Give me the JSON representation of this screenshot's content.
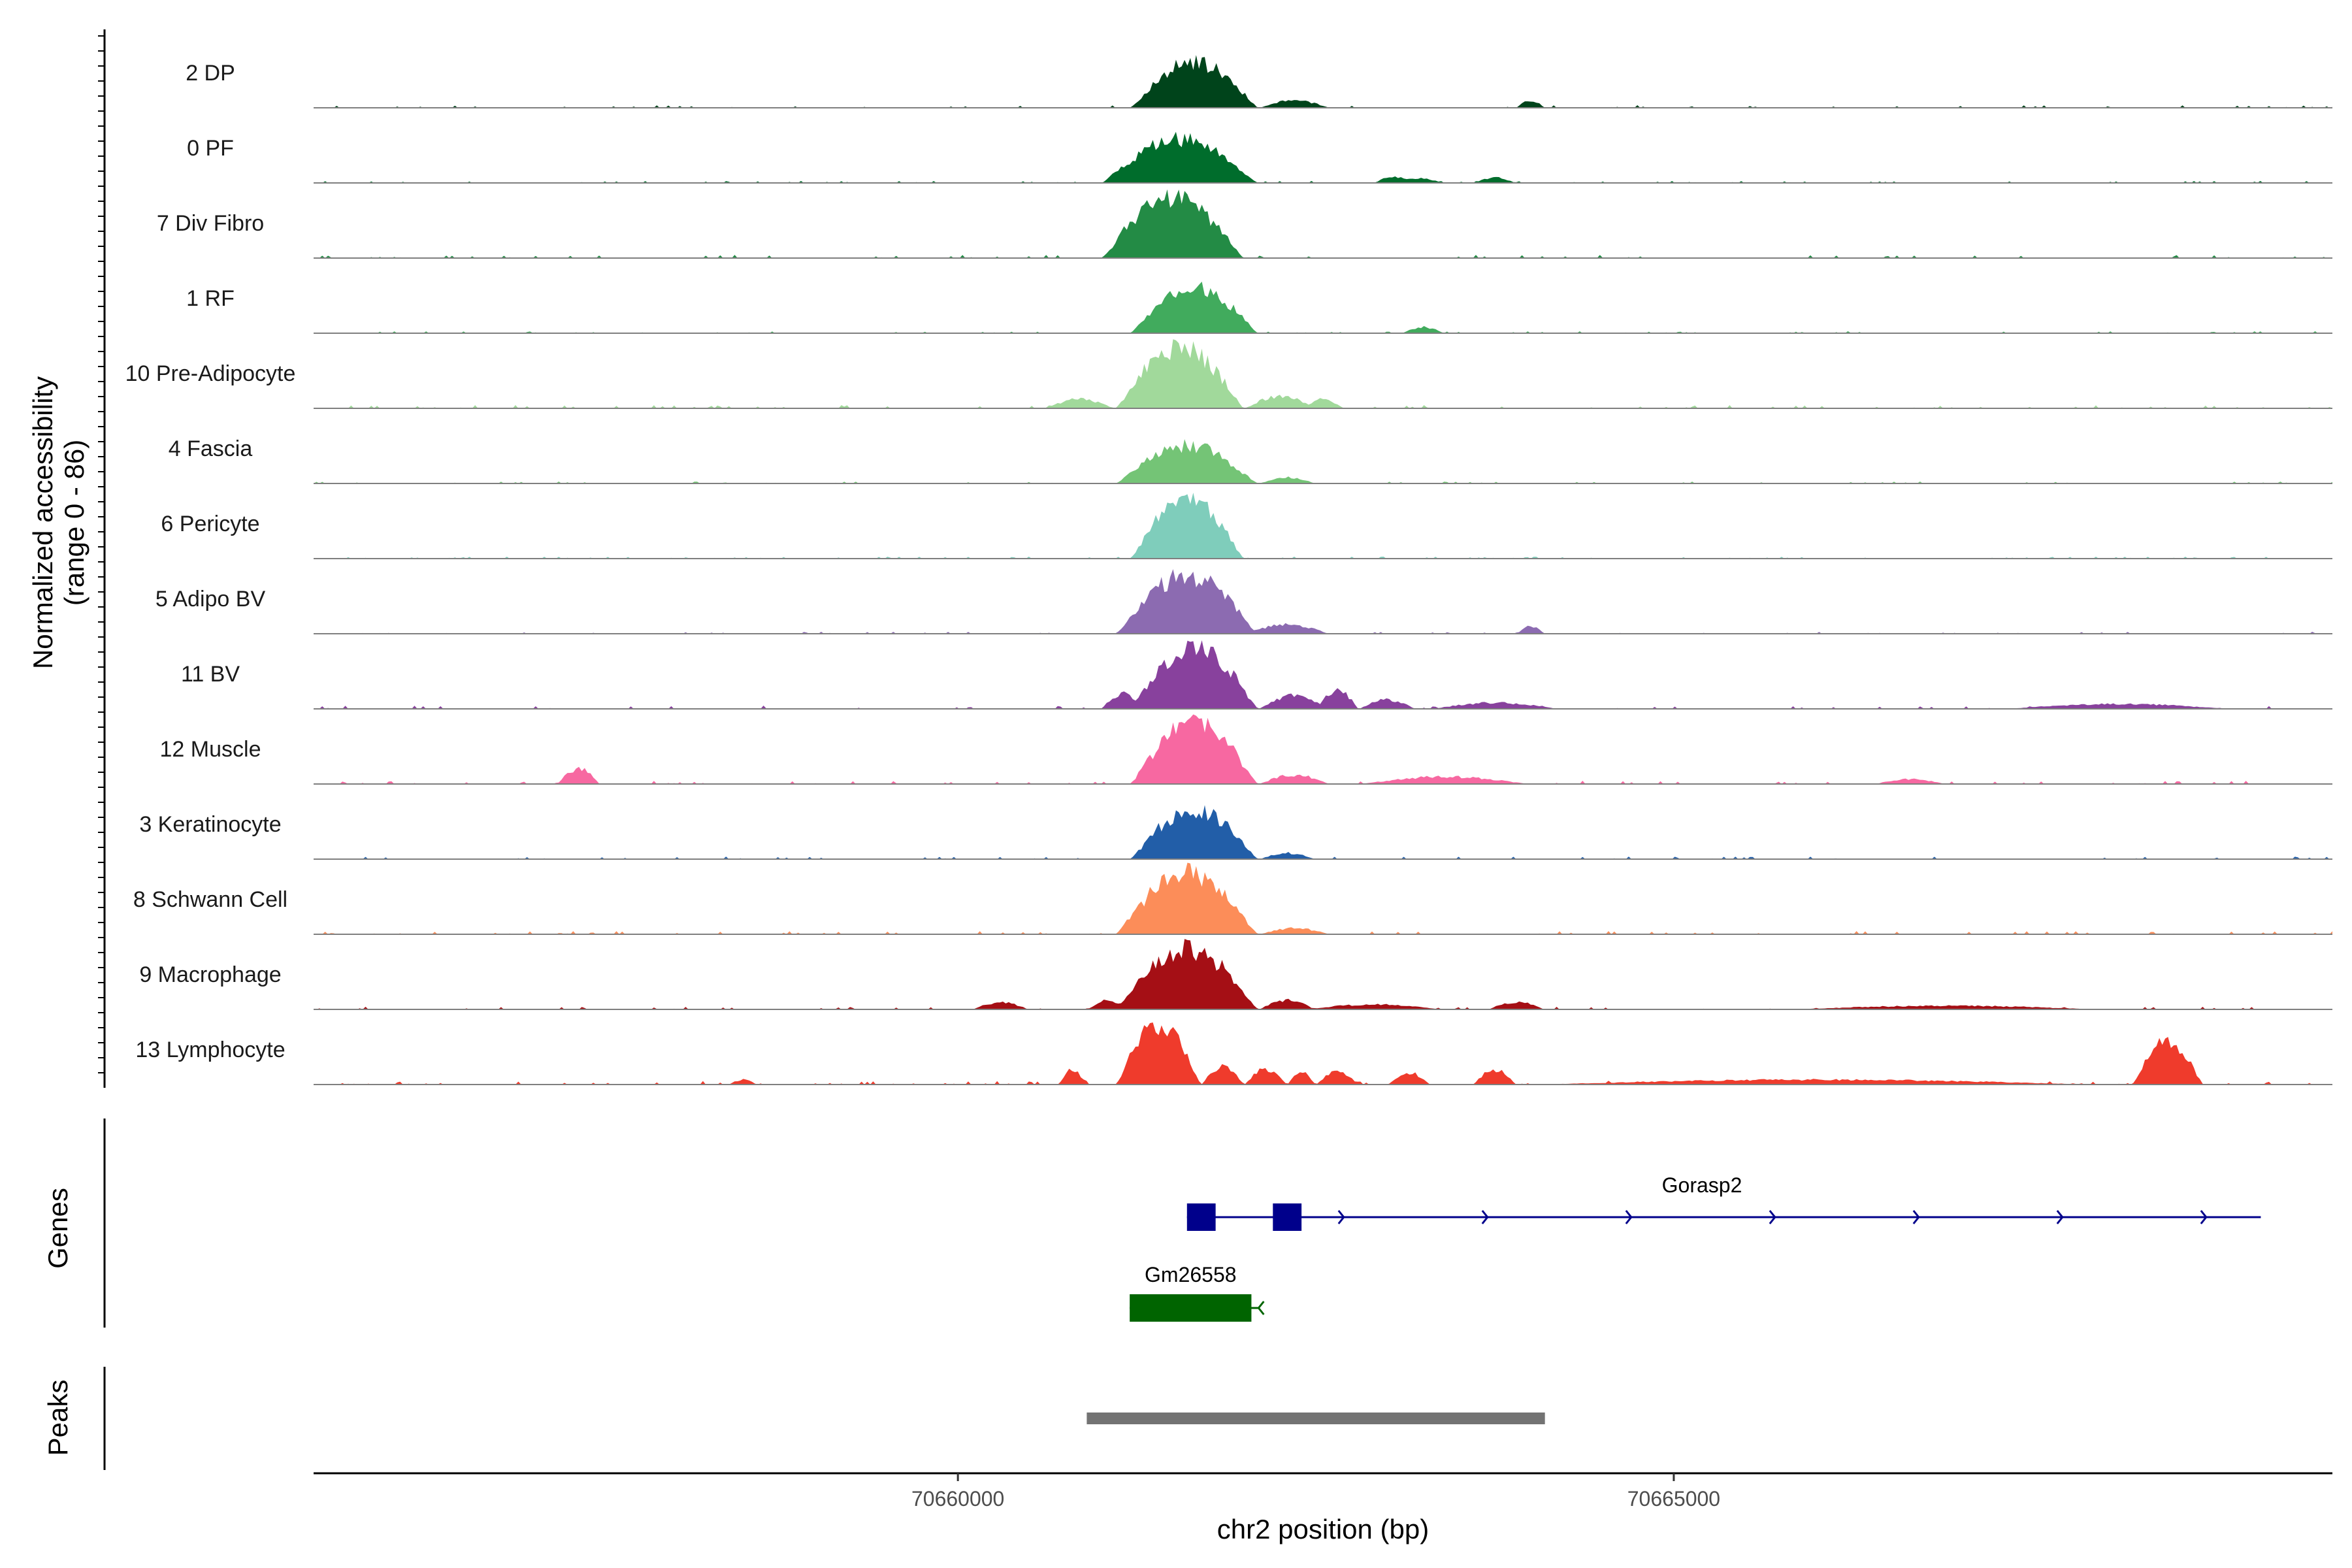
{
  "chart_data": {
    "type": "area",
    "title": "",
    "y_axis_title_line1": "Normalized accessibility",
    "y_axis_title_line2": "(range 0 - 86)",
    "y_range": [
      0,
      86
    ],
    "x_axis_title": "chr2 position (bp)",
    "x_range": [
      70655500,
      70669600
    ],
    "x_ticks": [
      {
        "value": 70660000,
        "label": "70660000"
      },
      {
        "value": 70665000,
        "label": "70665000"
      }
    ],
    "tracks": [
      {
        "name": "2 DP",
        "color": "#00441b",
        "peaks": [
          {
            "start": 70661200,
            "end": 70662100,
            "height": 0.75
          },
          {
            "start": 70662100,
            "end": 70662600,
            "height": 0.12
          },
          {
            "start": 70663900,
            "end": 70664100,
            "height": 0.12
          }
        ],
        "noise": 0.04,
        "seed": 3
      },
      {
        "name": "0 PF",
        "color": "#006d2c",
        "peaks": [
          {
            "start": 70661000,
            "end": 70662100,
            "height": 0.72
          },
          {
            "start": 70662900,
            "end": 70663200,
            "height": 0.1
          },
          {
            "start": 70663000,
            "end": 70663400,
            "height": 0.08
          },
          {
            "start": 70663600,
            "end": 70663900,
            "height": 0.09
          }
        ],
        "noise": 0.03,
        "seed": 7
      },
      {
        "name": "7 Div Fibro",
        "color": "#238b45",
        "peaks": [
          {
            "start": 70661000,
            "end": 70662000,
            "height": 1.0
          }
        ],
        "noise": 0.05,
        "seed": 11
      },
      {
        "name": "1 RF",
        "color": "#41ab5d",
        "peaks": [
          {
            "start": 70661200,
            "end": 70662100,
            "height": 0.75
          },
          {
            "start": 70663100,
            "end": 70663400,
            "height": 0.1
          }
        ],
        "noise": 0.03,
        "seed": 13
      },
      {
        "name": "10 Pre-Adipocyte",
        "color": "#a1d99b",
        "peaks": [
          {
            "start": 70661100,
            "end": 70662000,
            "height": 1.0
          },
          {
            "start": 70660600,
            "end": 70661100,
            "height": 0.15
          },
          {
            "start": 70662000,
            "end": 70662500,
            "height": 0.2
          },
          {
            "start": 70662400,
            "end": 70662700,
            "height": 0.15
          }
        ],
        "noise": 0.05,
        "seed": 17
      },
      {
        "name": "4 Fascia",
        "color": "#74c476",
        "peaks": [
          {
            "start": 70661100,
            "end": 70662100,
            "height": 0.62
          },
          {
            "start": 70662100,
            "end": 70662500,
            "height": 0.1
          }
        ],
        "noise": 0.03,
        "seed": 19
      },
      {
        "name": "6 Pericyte",
        "color": "#7fcdbb",
        "peaks": [
          {
            "start": 70661200,
            "end": 70662000,
            "height": 1.0
          }
        ],
        "noise": 0.03,
        "seed": 23
      },
      {
        "name": "5 Adipo BV",
        "color": "#8c6bb1",
        "peaks": [
          {
            "start": 70661100,
            "end": 70662100,
            "height": 0.95
          },
          {
            "start": 70662000,
            "end": 70662600,
            "height": 0.15
          },
          {
            "start": 70663900,
            "end": 70664100,
            "height": 0.12
          }
        ],
        "noise": 0.03,
        "seed": 29
      },
      {
        "name": "11 BV",
        "color": "#88419d",
        "peaks": [
          {
            "start": 70661200,
            "end": 70662100,
            "height": 1.0
          },
          {
            "start": 70661000,
            "end": 70661300,
            "height": 0.25
          },
          {
            "start": 70662100,
            "end": 70662600,
            "height": 0.22
          },
          {
            "start": 70662500,
            "end": 70662800,
            "height": 0.3
          },
          {
            "start": 70662800,
            "end": 70663200,
            "height": 0.15
          },
          {
            "start": 70663300,
            "end": 70664200,
            "height": 0.1
          },
          {
            "start": 70667300,
            "end": 70668900,
            "height": 0.08
          }
        ],
        "noise": 0.05,
        "seed": 31
      },
      {
        "name": "12 Muscle",
        "color": "#f768a1",
        "peaks": [
          {
            "start": 70661200,
            "end": 70662100,
            "height": 1.0
          },
          {
            "start": 70657200,
            "end": 70657500,
            "height": 0.25
          },
          {
            "start": 70662100,
            "end": 70662600,
            "height": 0.15
          },
          {
            "start": 70662800,
            "end": 70664000,
            "height": 0.12
          },
          {
            "start": 70666400,
            "end": 70666900,
            "height": 0.08
          }
        ],
        "noise": 0.05,
        "seed": 37
      },
      {
        "name": "3 Keratinocyte",
        "color": "#225ea8",
        "peaks": [
          {
            "start": 70661200,
            "end": 70662100,
            "height": 0.82
          },
          {
            "start": 70662100,
            "end": 70662500,
            "height": 0.1
          }
        ],
        "noise": 0.04,
        "seed": 41
      },
      {
        "name": "8 Schwann Cell",
        "color": "#fc8d59",
        "peaks": [
          {
            "start": 70661100,
            "end": 70662100,
            "height": 1.0
          },
          {
            "start": 70662100,
            "end": 70662600,
            "height": 0.1
          }
        ],
        "noise": 0.05,
        "seed": 43
      },
      {
        "name": "9 Macrophage",
        "color": "#a50f15",
        "peaks": [
          {
            "start": 70661100,
            "end": 70662100,
            "height": 1.0
          },
          {
            "start": 70660900,
            "end": 70661200,
            "height": 0.15
          },
          {
            "start": 70662100,
            "end": 70662500,
            "height": 0.15
          },
          {
            "start": 70660100,
            "end": 70660500,
            "height": 0.12
          },
          {
            "start": 70662400,
            "end": 70663400,
            "height": 0.08
          },
          {
            "start": 70663700,
            "end": 70664100,
            "height": 0.12
          },
          {
            "start": 70665800,
            "end": 70668000,
            "height": 0.06
          }
        ],
        "noise": 0.04,
        "seed": 47
      },
      {
        "name": "13 Lymphocyte",
        "color": "#ef3b2c",
        "peaks": [
          {
            "start": 70661100,
            "end": 70661700,
            "height": 1.0
          },
          {
            "start": 70660700,
            "end": 70660900,
            "height": 0.25
          },
          {
            "start": 70661700,
            "end": 70662000,
            "height": 0.3
          },
          {
            "start": 70662000,
            "end": 70662300,
            "height": 0.25
          },
          {
            "start": 70662300,
            "end": 70662500,
            "height": 0.2
          },
          {
            "start": 70662500,
            "end": 70662800,
            "height": 0.22
          },
          {
            "start": 70663000,
            "end": 70663300,
            "height": 0.2
          },
          {
            "start": 70663600,
            "end": 70663900,
            "height": 0.25
          },
          {
            "start": 70668200,
            "end": 70668700,
            "height": 0.7
          },
          {
            "start": 70658400,
            "end": 70658600,
            "height": 0.08
          },
          {
            "start": 70664000,
            "end": 70668000,
            "height": 0.08
          }
        ],
        "noise": 0.06,
        "seed": 53
      }
    ],
    "genes_title": "Genes",
    "genes": [
      {
        "name": "Gorasp2",
        "start": 70661600,
        "end": 70669100,
        "strand": "+",
        "color": "#00008b",
        "exons": [
          [
            70661600,
            70661800
          ],
          [
            70662200,
            70662400
          ]
        ]
      },
      {
        "name": "Gm26558",
        "start": 70661200,
        "end": 70662100,
        "strand": "-",
        "color": "#006400",
        "exons": [
          [
            70661200,
            70662050
          ]
        ]
      }
    ],
    "peaks_title": "Peaks",
    "peak_regions": [
      {
        "start": 70660900,
        "end": 70664100,
        "color": "#737373"
      }
    ]
  }
}
